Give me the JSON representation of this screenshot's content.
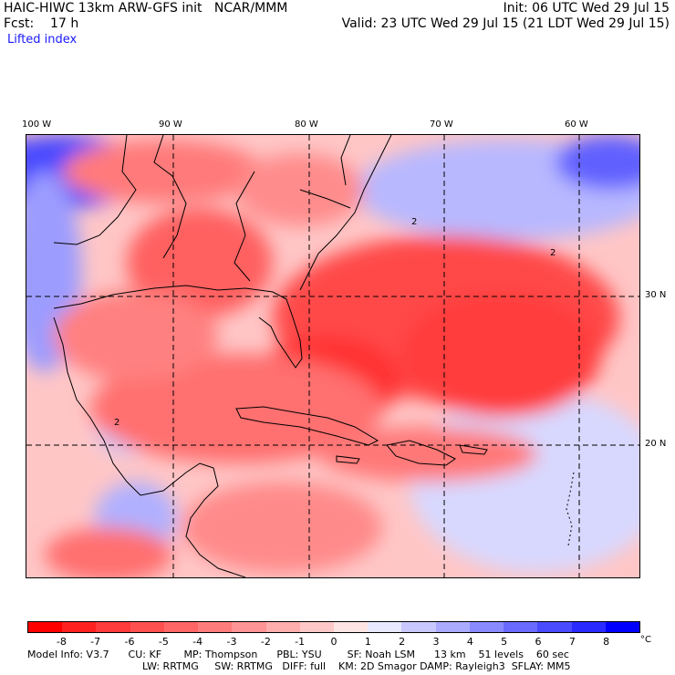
{
  "header": {
    "model_line": "HAIC-HIWC 13km ARW-GFS init   NCAR/MMM",
    "fcst_line": "Fcst:    17 h",
    "field": "Lifted index",
    "init_line": "Init: 06 UTC Wed 29 Jul 15",
    "valid_line": "Valid: 23 UTC Wed 29 Jul 15 (21 LDT Wed 29 Jul 15)"
  },
  "map": {
    "lon_labels": [
      "100 W",
      "90 W",
      "80 W",
      "70 W",
      "60 W"
    ],
    "lat_labels": [
      "30 N",
      "20 N"
    ],
    "contour_label": "2"
  },
  "colorbar": {
    "labels": [
      "-8",
      "-7",
      "-6",
      "-5",
      "-4",
      "-3",
      "-2",
      "-1",
      "0",
      "1",
      "2",
      "3",
      "4",
      "5",
      "6",
      "7",
      "8"
    ],
    "unit": "°C",
    "colors": [
      "#ff0000",
      "#ff2020",
      "#ff3a3a",
      "#ff5050",
      "#ff6666",
      "#ff7c7c",
      "#ff9494",
      "#ffadad",
      "#ffc8c8",
      "#ffe4e4",
      "#e8e8ff",
      "#c8c8ff",
      "#aaaaff",
      "#8a8aff",
      "#6a6aff",
      "#4a4aff",
      "#2a2aff",
      "#0000ff"
    ]
  },
  "footer": {
    "line1": "Model Info: V3.7      CU: KF       MP: Thompson      PBL: YSU        SF: Noah LSM      13 km    51 levels    60 sec",
    "line2": "LW: RRTMG     SW: RRTMG   DIFF: full    KM: 2D Smagor DAMP: Rayleigh3  SFLAY: MM5"
  }
}
